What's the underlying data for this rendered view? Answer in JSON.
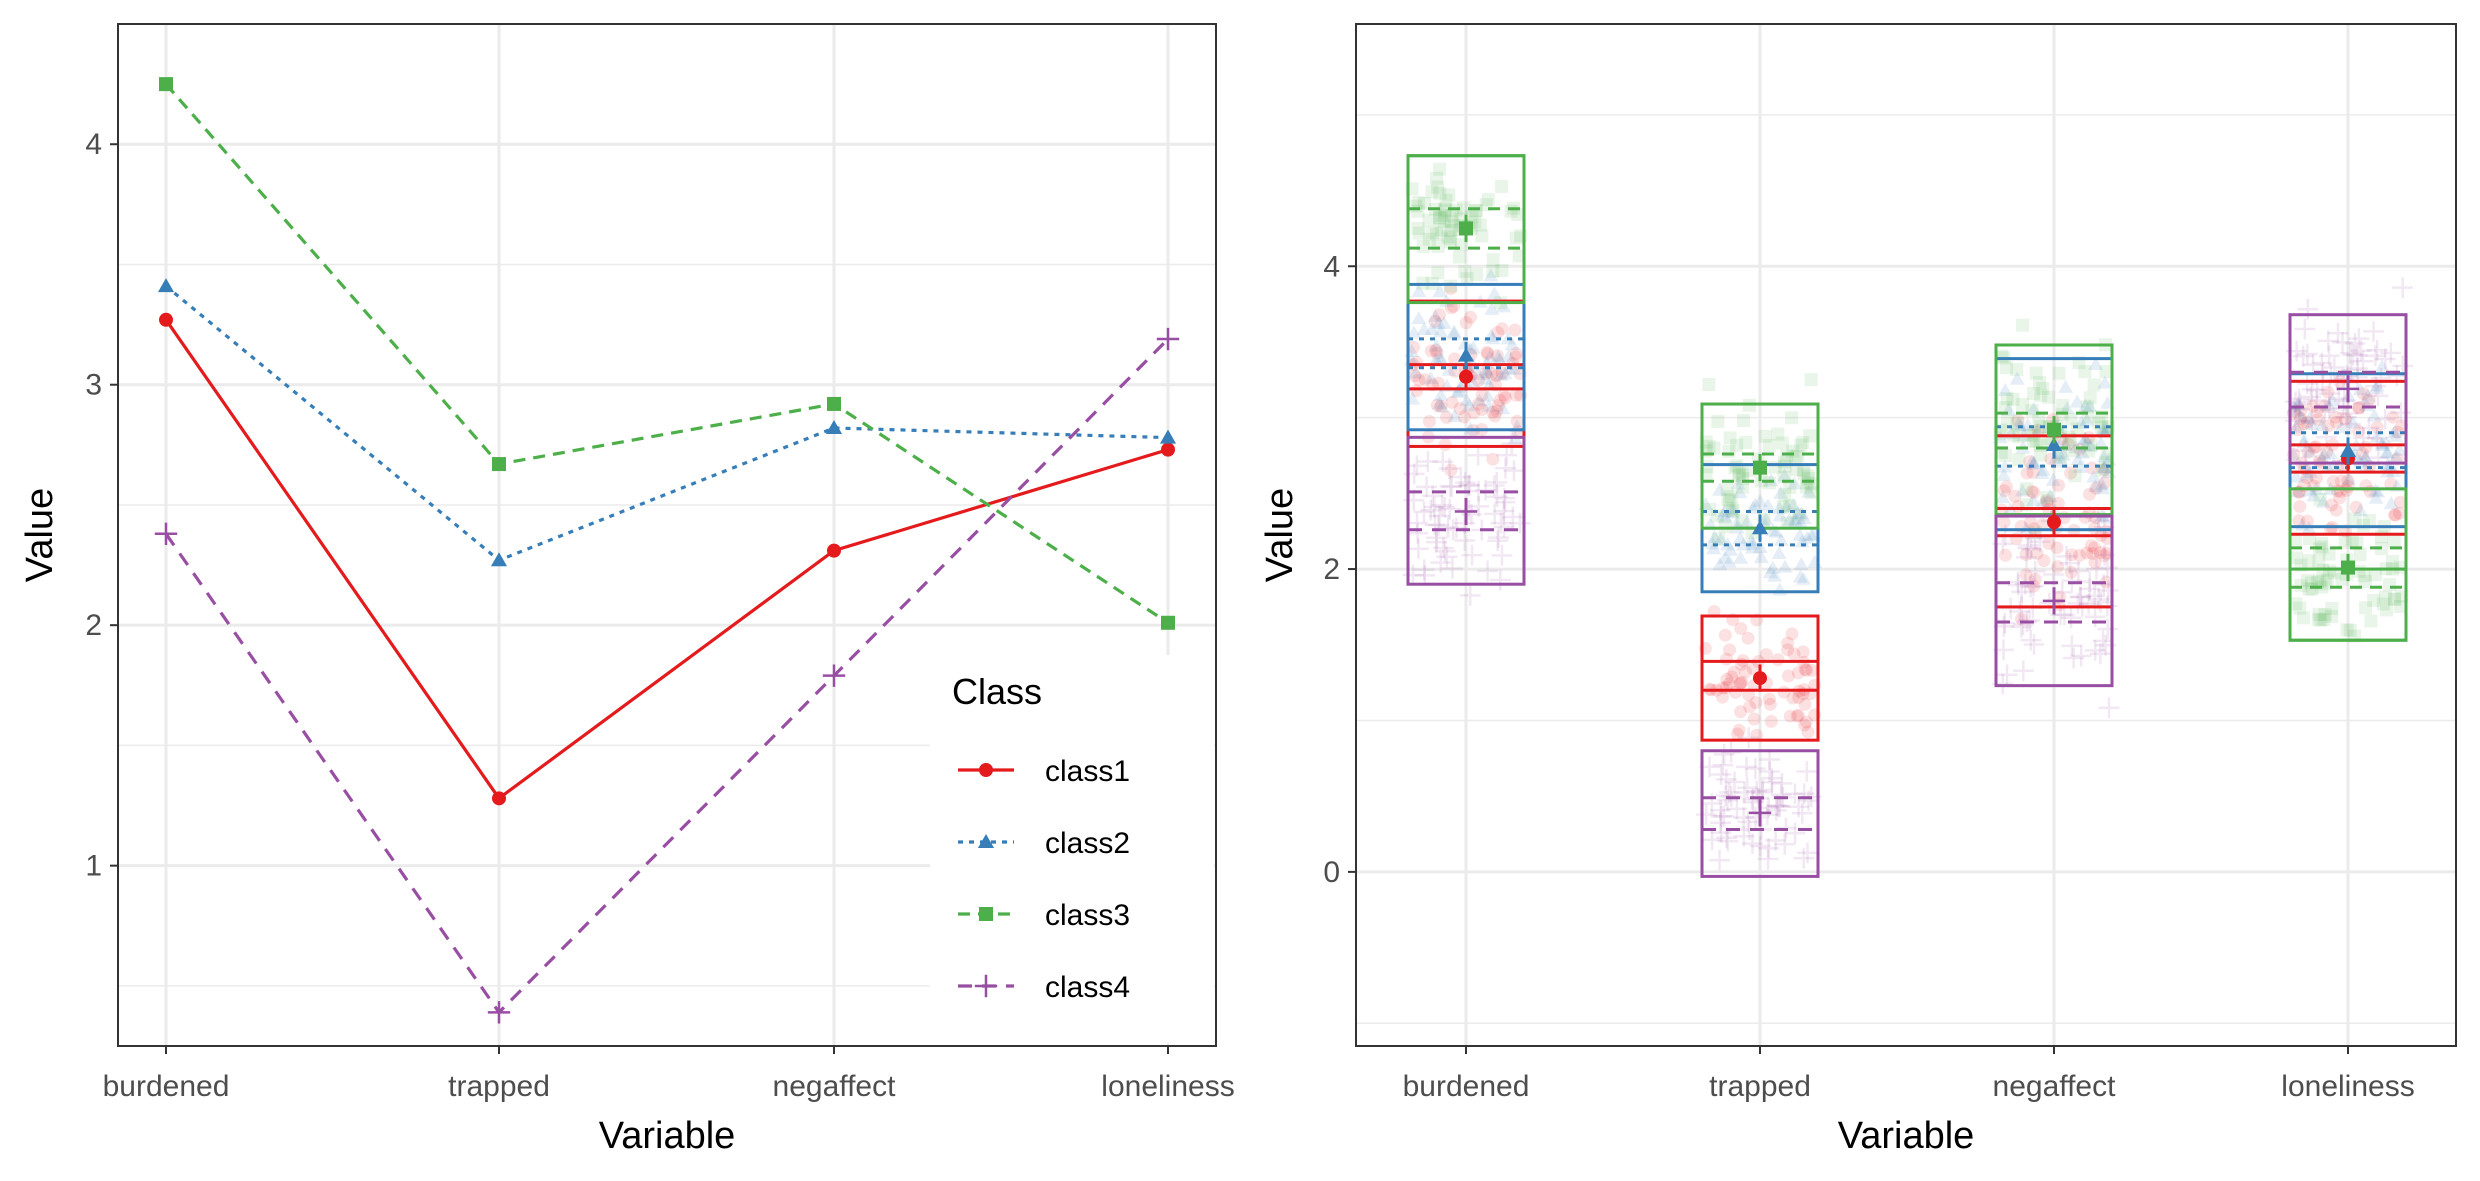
{
  "colors": {
    "class1": "#E41A1C",
    "class2": "#377EB8",
    "class3": "#4DAF4A",
    "class4": "#984EA3",
    "grid": "#EBEBEB",
    "panel_border": "#333333"
  },
  "chart_data": [
    {
      "type": "line",
      "xlabel": "Variable",
      "ylabel": "Value",
      "categories": [
        "burdened",
        "trapped",
        "negaffect",
        "loneliness"
      ],
      "ylim": [
        0.25,
        4.5
      ],
      "yticks": [
        1,
        2,
        3,
        4
      ],
      "grid": true,
      "legend": {
        "title": "Class",
        "position": "bottom-right",
        "entries": [
          "class1",
          "class2",
          "class3",
          "class4"
        ]
      },
      "series": [
        {
          "name": "class1",
          "values": [
            3.27,
            1.28,
            2.31,
            2.73
          ],
          "marker": "circle",
          "linestyle": "solid"
        },
        {
          "name": "class2",
          "values": [
            3.41,
            2.27,
            2.82,
            2.78
          ],
          "marker": "triangle",
          "linestyle": "dotted"
        },
        {
          "name": "class3",
          "values": [
            4.25,
            2.67,
            2.92,
            2.01
          ],
          "marker": "square",
          "linestyle": "dashed"
        },
        {
          "name": "class4",
          "values": [
            2.38,
            0.39,
            1.79,
            3.19
          ],
          "marker": "plus",
          "linestyle": "longdash"
        }
      ]
    },
    {
      "type": "box",
      "xlabel": "Variable",
      "ylabel": "Value",
      "categories": [
        "burdened",
        "trapped",
        "negaffect",
        "loneliness"
      ],
      "ylim": [
        -1.15,
        5.6
      ],
      "yticks": [
        0,
        2,
        4
      ],
      "grid": true,
      "series": [
        {
          "name": "class1",
          "marker": "circle",
          "means": [
            3.27,
            1.28,
            2.31,
            2.73
          ],
          "boxes": [
            [
              2.81,
              3.77
            ],
            [
              0.87,
              1.69
            ],
            [
              1.75,
              2.88
            ],
            [
              2.23,
              3.24
            ]
          ],
          "inner_lines": [
            [
              3.19,
              3.35
            ],
            [
              1.2,
              1.39
            ],
            [
              2.22,
              2.4
            ],
            [
              2.64,
              2.82
            ]
          ]
        },
        {
          "name": "class2",
          "marker": "triangle",
          "means": [
            3.41,
            2.27,
            2.82,
            2.78
          ],
          "boxes": [
            [
              2.92,
              3.88
            ],
            [
              1.85,
              2.69
            ],
            [
              2.26,
              3.39
            ],
            [
              2.28,
              3.29
            ]
          ],
          "inner_lines": [
            [
              3.33,
              3.52
            ],
            [
              2.16,
              2.38
            ],
            [
              2.68,
              2.94
            ],
            [
              2.67,
              2.9
            ]
          ]
        },
        {
          "name": "class3",
          "marker": "square",
          "means": [
            4.25,
            2.67,
            2.92,
            2.01
          ],
          "boxes": [
            [
              4.73,
              4.73
            ],
            [
              2.27,
              3.09
            ],
            [
              2.36,
              3.48
            ],
            [
              1.53,
              2.0
            ]
          ],
          "inner_lines": [
            [
              4.12,
              4.38
            ],
            [
              2.58,
              2.76
            ],
            [
              2.8,
              3.03
            ],
            [
              1.88,
              2.14
            ]
          ]
        },
        {
          "name": "class4",
          "marker": "plus",
          "means": [
            2.38,
            0.39,
            1.79,
            3.19
          ],
          "boxes": [
            [
              1.9,
              2.87
            ],
            [
              -0.03,
              0.8
            ],
            [
              1.23,
              2.35
            ],
            [
              2.7,
              3.68
            ]
          ],
          "inner_lines": [
            [
              2.26,
              2.51
            ],
            [
              0.28,
              0.49
            ],
            [
              1.65,
              1.91
            ],
            [
              3.07,
              3.3
            ]
          ]
        }
      ]
    }
  ]
}
